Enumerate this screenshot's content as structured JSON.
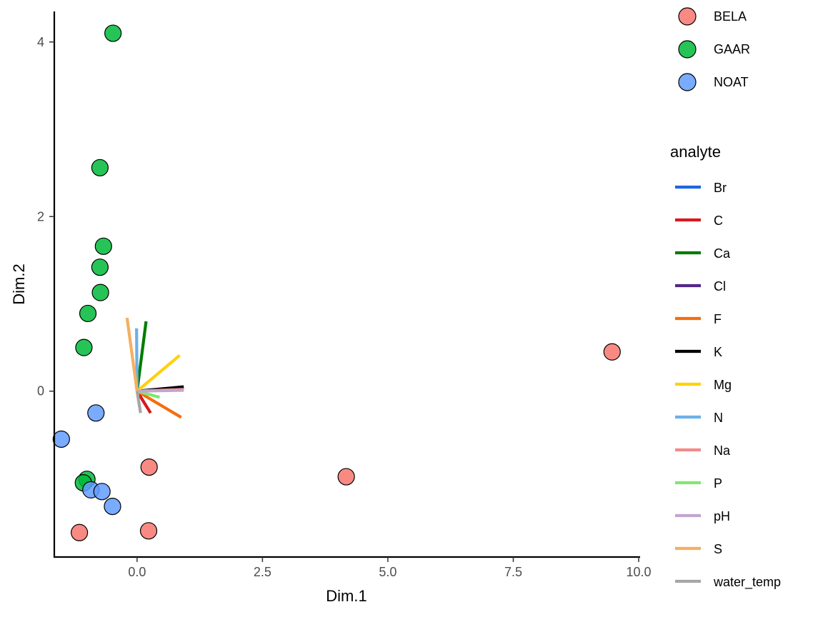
{
  "chart_data": {
    "type": "scatter",
    "title": "",
    "xlabel": "Dim.1",
    "ylabel": "Dim.2",
    "xlim": [
      -1.65,
      10.0
    ],
    "ylim": [
      -1.9,
      4.35
    ],
    "x_ticks": [
      0.0,
      2.5,
      5.0,
      7.5,
      10.0
    ],
    "x_tick_labels": [
      "0.0",
      "2.5",
      "5.0",
      "7.5",
      "10.0"
    ],
    "y_ticks": [
      0,
      2,
      4
    ],
    "y_tick_labels": [
      "0",
      "2",
      "4"
    ],
    "grid": false,
    "legend_position": "right",
    "point_series": [
      {
        "name": "BELA",
        "color": "#F8766D",
        "points": [
          [
            9.47,
            0.45
          ],
          [
            4.17,
            -0.98
          ],
          [
            0.24,
            -0.87
          ],
          [
            0.23,
            -1.6
          ],
          [
            -1.15,
            -1.62
          ]
        ]
      },
      {
        "name": "GAAR",
        "color": "#00BA38",
        "points": [
          [
            -0.48,
            4.1
          ],
          [
            -0.74,
            2.56
          ],
          [
            -0.67,
            1.66
          ],
          [
            -0.74,
            1.42
          ],
          [
            -0.73,
            1.13
          ],
          [
            -0.98,
            0.89
          ],
          [
            -1.06,
            0.5
          ],
          [
            -1.0,
            -1.01
          ],
          [
            -1.07,
            -1.05
          ]
        ]
      },
      {
        "name": "NOAT",
        "color": "#619CFF",
        "points": [
          [
            -0.82,
            -0.25
          ],
          [
            -1.51,
            -0.55
          ],
          [
            -0.92,
            -1.13
          ],
          [
            -0.7,
            -1.15
          ],
          [
            -0.49,
            -1.32
          ]
        ]
      }
    ],
    "analyte_title": "analyte",
    "analyte_vectors": [
      {
        "name": "Br",
        "color": "#1F66E0",
        "x": 0.93,
        "y": 0.03
      },
      {
        "name": "C",
        "color": "#D7191C",
        "x": 0.27,
        "y": -0.25
      },
      {
        "name": "Ca",
        "color": "#007C00",
        "x": 0.18,
        "y": 0.8
      },
      {
        "name": "Cl",
        "color": "#542788",
        "x": 0.93,
        "y": 0.04
      },
      {
        "name": "F",
        "color": "#F46D0F",
        "x": 0.88,
        "y": -0.3
      },
      {
        "name": "K",
        "color": "#000000",
        "x": 0.93,
        "y": 0.05
      },
      {
        "name": "Mg",
        "color": "#FFD10F",
        "x": 0.85,
        "y": 0.41
      },
      {
        "name": "N",
        "color": "#6BB0EA",
        "x": -0.01,
        "y": 0.72
      },
      {
        "name": "Na",
        "color": "#F28A8A",
        "x": 0.93,
        "y": 0.02
      },
      {
        "name": "P",
        "color": "#80E86E",
        "x": 0.45,
        "y": -0.07
      },
      {
        "name": "pH",
        "color": "#C2A5CF",
        "x": 0.93,
        "y": 0.01
      },
      {
        "name": "S",
        "color": "#F4B060",
        "x": -0.2,
        "y": 0.84
      },
      {
        "name": "water_temp",
        "color": "#A6A6A6",
        "x": 0.07,
        "y": -0.25
      }
    ]
  }
}
